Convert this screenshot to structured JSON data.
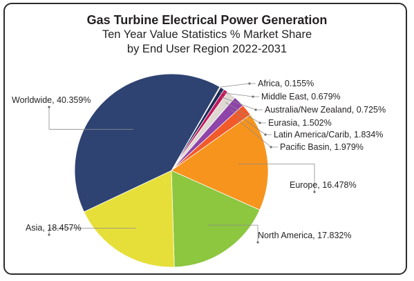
{
  "title": "Gas Turbine Electrical Power Generation",
  "subtitle_line1": "Ten Year Value Statistics % Market Share",
  "subtitle_line2": "by End User Region 2022-2031",
  "chart_data": {
    "type": "pie",
    "slices": [
      {
        "label": "Africa, 0.155%",
        "name": "Africa",
        "value": 0.155,
        "color": "#e8d84a"
      },
      {
        "label": "Middle East, 0.679%",
        "name": "Middle East",
        "value": 0.679,
        "color": "#1d2a5a"
      },
      {
        "label": "Australia/New Zealand, 0.725%",
        "name": "Australia/New Zealand",
        "value": 0.725,
        "color": "#c2185b"
      },
      {
        "label": "Eurasia, 1.502%",
        "name": "Eurasia",
        "value": 1.502,
        "color": "#ddd8d2"
      },
      {
        "label": "Latin America/Carib, 1.834%",
        "name": "Latin America/Carib",
        "value": 1.834,
        "color": "#8e44a8"
      },
      {
        "label": "Pacific Basin, 1.979%",
        "name": "Pacific Basin",
        "value": 1.979,
        "color": "#f15a29"
      },
      {
        "label": "Europe, 16.478%",
        "name": "Europe",
        "value": 16.478,
        "color": "#f7941d"
      },
      {
        "label": "North America, 17.832%",
        "name": "North America",
        "value": 17.832,
        "color": "#8dc63f"
      },
      {
        "label": "Asia, 18.457%",
        "name": "Asia",
        "value": 18.457,
        "color": "#e6df3a"
      },
      {
        "label": "Worldwide, 40.359%",
        "name": "Worldwide",
        "value": 40.359,
        "color": "#2e4372"
      }
    ]
  }
}
